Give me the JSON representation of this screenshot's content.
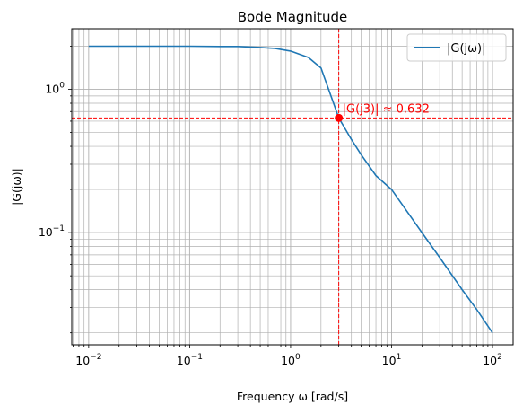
{
  "chart_data": {
    "type": "line",
    "title": "Bode Magnitude",
    "xlabel": "Frequency ω [rad/s]",
    "ylabel": "|G(jω)|",
    "x_scale": "log",
    "y_scale": "log",
    "xlim": [
      0.0068,
      160
    ],
    "ylim": [
      0.0165,
      2.65
    ],
    "x_ticks": [
      {
        "value": 0.01,
        "base": "10",
        "exp": "−2"
      },
      {
        "value": 0.1,
        "base": "10",
        "exp": "−1"
      },
      {
        "value": 1,
        "base": "10",
        "exp": "0"
      },
      {
        "value": 10,
        "base": "10",
        "exp": "1"
      },
      {
        "value": 100,
        "base": "10",
        "exp": "2"
      }
    ],
    "y_ticks": [
      {
        "value": 0.1,
        "base": "10",
        "exp": "−1"
      },
      {
        "value": 1,
        "base": "10",
        "exp": "0"
      }
    ],
    "grid": true,
    "legend_position": "top-right",
    "series": [
      {
        "name": "|G(jω)|",
        "color": "#1f77b4",
        "x": [
          0.01,
          0.02,
          0.05,
          0.1,
          0.2,
          0.3,
          0.5,
          0.7,
          1.0,
          1.5,
          2.0,
          3.0,
          4.0,
          5.0,
          7.0,
          10,
          20,
          30,
          50,
          70,
          100
        ],
        "y": [
          2.0,
          2.0,
          2.0,
          2.0,
          1.99,
          1.99,
          1.96,
          1.93,
          1.85,
          1.67,
          1.41,
          0.632,
          0.447,
          0.35,
          0.25,
          0.2,
          0.1,
          0.067,
          0.04,
          0.029,
          0.02
        ]
      }
    ],
    "marker": {
      "x": 3,
      "y": 0.632,
      "color": "#ff0000",
      "label": "|G(j3)| ≈ 0.632"
    }
  }
}
